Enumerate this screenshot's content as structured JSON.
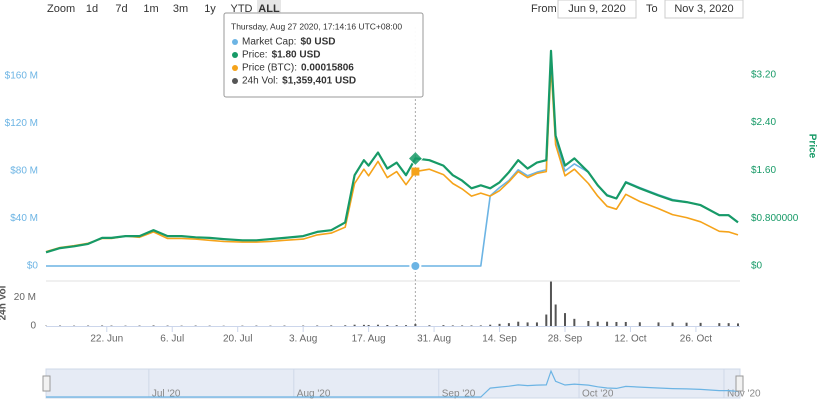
{
  "chart_data": {
    "type": "line",
    "range_selector": {
      "label": "Zoom",
      "buttons": [
        "1d",
        "7d",
        "1m",
        "3m",
        "1y",
        "YTD",
        "ALL"
      ],
      "selected": 6
    },
    "date_range": {
      "from_label": "From",
      "from": "Jun 9, 2020",
      "to_label": "To",
      "to": "Nov 3, 2020"
    },
    "tooltip": {
      "date": "Thursday, Aug 27 2020, 17:14:16 UTC+08:00",
      "x": 79,
      "items": [
        {
          "label": "Market Cap:",
          "value": "$0 USD",
          "color": "#6cb4e4"
        },
        {
          "label": "Price:",
          "value": "$1.80 USD",
          "color": "#179a67"
        },
        {
          "label": "Price (BTC):",
          "value": "0.00015806",
          "color": "#f5a31a"
        },
        {
          "label": "24h Vol:",
          "value": "$1,359,401 USD",
          "color": "#555555"
        }
      ]
    },
    "y2_title": "Price",
    "y4_title": "24h Vol",
    "grid": false,
    "xlim": [
      0,
      148
    ],
    "xticks": [
      {
        "value": 13,
        "label": "22. Jun"
      },
      {
        "value": 27,
        "label": "6. Jul"
      },
      {
        "value": 41,
        "label": "20. Jul"
      },
      {
        "value": 55,
        "label": "3. Aug"
      },
      {
        "value": 69,
        "label": "17. Aug"
      },
      {
        "value": 83,
        "label": "31. Aug"
      },
      {
        "value": 97,
        "label": "14. Sep"
      },
      {
        "value": 111,
        "label": "28. Sep"
      },
      {
        "value": 125,
        "label": "12. Oct"
      },
      {
        "value": 139,
        "label": "26. Oct"
      }
    ],
    "ylim": [
      0,
      200000000
    ],
    "yticks": [
      {
        "value": 0,
        "label": "$0"
      },
      {
        "value": 40000000,
        "label": "$40 M"
      },
      {
        "value": 80000000,
        "label": "$80 M"
      },
      {
        "value": 120000000,
        "label": "$120 M"
      },
      {
        "value": 160000000,
        "label": "$160 M"
      }
    ],
    "y2lim": [
      0,
      4
    ],
    "y2ticks": [
      {
        "value": 0,
        "label": "$0"
      },
      {
        "value": 0.8,
        "label": "$0.800000"
      },
      {
        "value": 1.6,
        "label": "$1.60"
      },
      {
        "value": 2.4,
        "label": "$2.40"
      },
      {
        "value": 3.2,
        "label": "$3.20"
      }
    ],
    "y3lim": [
      0,
      0.0004
    ],
    "y4lim": [
      0,
      30000000
    ],
    "y4ticks": [
      0,
      {
        "value": 20000000,
        "label": "20 M"
      }
    ],
    "x": [
      0,
      3,
      6,
      9,
      12,
      14,
      17,
      20,
      23,
      26,
      29,
      32,
      35,
      38,
      42,
      45,
      48,
      51,
      55,
      58,
      61,
      64,
      66,
      68,
      69,
      71,
      73,
      75,
      77,
      79,
      82,
      85,
      87,
      89,
      91,
      93,
      95,
      97,
      99,
      101,
      103,
      105,
      107,
      108,
      109,
      111,
      113,
      116,
      118,
      120,
      122,
      124,
      127,
      131,
      134,
      137,
      140,
      144,
      146,
      148
    ],
    "series": [
      {
        "axis": "y",
        "type": "line",
        "color": "#6cb4e4",
        "values": [
          0,
          0,
          0,
          0,
          0,
          0,
          0,
          0,
          0,
          0,
          0,
          0,
          0,
          0,
          0,
          0,
          0,
          0,
          0,
          0,
          0,
          0,
          0,
          0,
          0,
          0,
          0,
          0,
          0,
          0,
          0,
          0,
          0,
          0,
          0,
          0,
          59000000,
          66000000,
          72000000,
          81000000,
          76000000,
          79000000,
          81000000,
          173000000,
          105000000,
          80000000,
          86000000,
          79000000,
          68000000,
          60000000,
          57000000,
          71000000,
          66000000,
          60000000,
          56000000,
          54000000,
          51000000,
          43000000,
          43000000,
          37000000
        ]
      },
      {
        "axis": "y3",
        "type": "line",
        "color": "#f5a31a",
        "values": [
          2.4e-05,
          3.1e-05,
          3.4e-05,
          3.8e-05,
          4.6e-05,
          4.6e-05,
          5e-05,
          4.8e-05,
          5.7e-05,
          4.6e-05,
          4.6e-05,
          4.5e-05,
          4.3e-05,
          4.1e-05,
          4e-05,
          4e-05,
          4.1e-05,
          4.3e-05,
          4.5e-05,
          5.2e-05,
          5.5e-05,
          6.5e-05,
          0.000138,
          0.000162,
          0.000151,
          0.000175,
          0.000148,
          0.000158,
          0.000136,
          0.00015806,
          0.000162,
          0.000153,
          0.000138,
          0.000129,
          0.000117,
          0.000122,
          0.000117,
          0.000126,
          0.000141,
          0.000158,
          0.000148,
          0.000155,
          0.000158,
          0.000335,
          0.000203,
          0.000151,
          0.000162,
          0.000138,
          0.000117,
          0.0001,
          9.5e-05,
          0.00012,
          0.000108,
          9.6e-05,
          8.6e-05,
          8.1e-05,
          7.4e-05,
          5.8e-05,
          5.7e-05,
          5.2e-05
        ]
      },
      {
        "axis": "y2",
        "type": "line",
        "color": "#179a67",
        "values": [
          0.23,
          0.3,
          0.33,
          0.37,
          0.47,
          0.47,
          0.5,
          0.5,
          0.6,
          0.5,
          0.5,
          0.48,
          0.47,
          0.45,
          0.43,
          0.43,
          0.45,
          0.47,
          0.5,
          0.57,
          0.6,
          0.73,
          1.52,
          1.77,
          1.68,
          1.9,
          1.63,
          1.73,
          1.52,
          1.8,
          1.77,
          1.68,
          1.52,
          1.43,
          1.3,
          1.35,
          1.3,
          1.4,
          1.57,
          1.77,
          1.63,
          1.73,
          1.77,
          3.6,
          2.18,
          1.68,
          1.8,
          1.57,
          1.35,
          1.18,
          1.13,
          1.4,
          1.3,
          1.18,
          1.1,
          1.07,
          1.02,
          0.85,
          0.85,
          0.73
        ]
      },
      {
        "axis": "y4",
        "type": "bar",
        "color": "#555555",
        "values": [
          200000,
          300000,
          250000,
          300000,
          350000,
          300000,
          250000,
          300000,
          400000,
          300000,
          250000,
          300000,
          250000,
          200000,
          250000,
          300000,
          250000,
          300000,
          300000,
          350000,
          400000,
          500000,
          900000,
          800000,
          700000,
          900000,
          700000,
          600000,
          600000,
          1359401,
          500000,
          600000,
          400000,
          400000,
          400000,
          400000,
          900000,
          1500000,
          2000000,
          3000000,
          2500000,
          2500000,
          8000000,
          31000000,
          15000000,
          9000000,
          5000000,
          3500000,
          3000000,
          3000000,
          2800000,
          2800000,
          2600000,
          2500000,
          2400000,
          2300000,
          2200000,
          2000000,
          2000000,
          1800000
        ]
      }
    ],
    "navigator": {
      "series": 0,
      "ylim": [
        0,
        180000000
      ],
      "xticks": [
        {
          "value": 22,
          "label": "Jul '20"
        },
        {
          "value": 53,
          "label": "Aug '20"
        },
        {
          "value": 84,
          "label": "Sep '20"
        },
        {
          "value": 114,
          "label": "Oct '20"
        },
        {
          "value": 145,
          "label": "Nov '20"
        }
      ]
    }
  }
}
